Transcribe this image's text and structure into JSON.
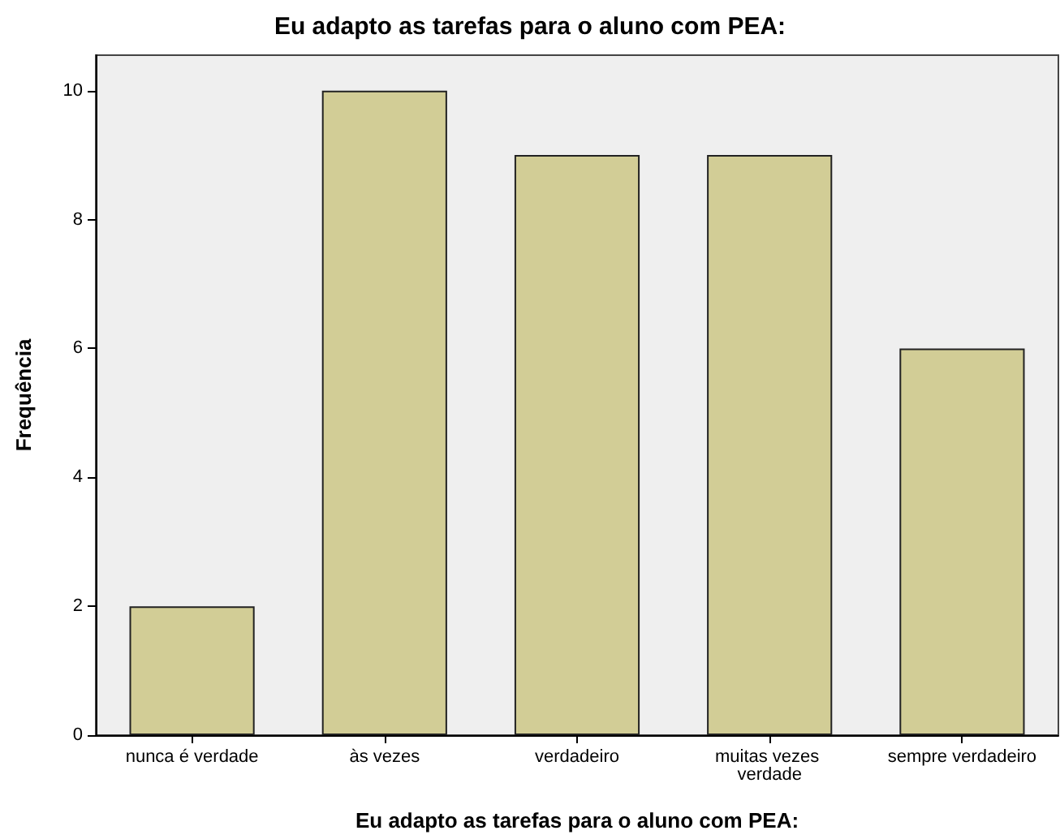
{
  "chart_data": {
    "type": "bar",
    "title": "Eu adapto as tarefas para o aluno com PEA:",
    "xlabel": "Eu adapto as tarefas para o aluno com PEA:",
    "ylabel": "Frequência",
    "categories": [
      "nunca é verdade",
      "às vezes",
      "verdadeiro",
      "muitas vezes verdade",
      "sempre verdadeiro"
    ],
    "values": [
      2,
      10,
      9,
      9,
      6
    ],
    "color": "#d2cd96",
    "ylim": [
      0,
      10.55
    ],
    "yticks": [
      0,
      2,
      4,
      6,
      8,
      10
    ],
    "grid": false
  }
}
